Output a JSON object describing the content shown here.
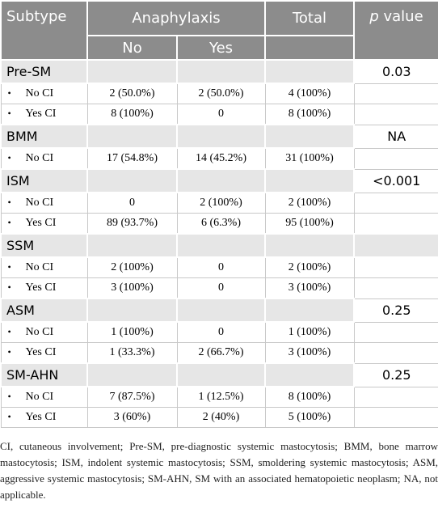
{
  "header": {
    "subtype": "Subtype",
    "anaphylaxis": "Anaphylaxis",
    "total": "Total",
    "p_symbol": "p",
    "p_label": "value",
    "no": "No",
    "yes": "Yes"
  },
  "groups": [
    {
      "subtype": "Pre-SM",
      "p_value": "0.03",
      "rows": [
        {
          "label": "No CI",
          "no": "2 (50.0%)",
          "yes": "2 (50.0%)",
          "total": "4 (100%)"
        },
        {
          "label": "Yes CI",
          "no": "8 (100%)",
          "yes": "0",
          "total": "8 (100%)"
        }
      ]
    },
    {
      "subtype": "BMM",
      "p_value": "NA",
      "rows": [
        {
          "label": "No CI",
          "no": "17 (54.8%)",
          "yes": "14 (45.2%)",
          "total": "31 (100%)"
        }
      ]
    },
    {
      "subtype": "ISM",
      "p_value": "<0.001",
      "rows": [
        {
          "label": "No CI",
          "no": "0",
          "yes": "2 (100%)",
          "total": "2 (100%)"
        },
        {
          "label": "Yes CI",
          "no": "89 (93.7%)",
          "yes": "6 (6.3%)",
          "total": "95 (100%)"
        }
      ]
    },
    {
      "subtype": "SSM",
      "rows": [
        {
          "label": "No CI",
          "no": "2 (100%)",
          "yes": "0",
          "total": "2 (100%)"
        },
        {
          "label": "Yes CI",
          "no": "3 (100%)",
          "yes": "0",
          "total": "3 (100%)"
        }
      ]
    },
    {
      "subtype": "ASM",
      "p_value": "0.25",
      "rows": [
        {
          "label": "No CI",
          "no": "1 (100%)",
          "yes": "0",
          "total": "1 (100%)"
        },
        {
          "label": "Yes CI",
          "no": "1 (33.3%)",
          "yes": "2 (66.7%)",
          "total": "3 (100%)"
        }
      ]
    },
    {
      "subtype": "SM-AHN",
      "p_value": "0.25",
      "rows": [
        {
          "label": "No CI",
          "no": "7 (87.5%)",
          "yes": "1 (12.5%)",
          "total": "8 (100%)"
        },
        {
          "label": "Yes CI",
          "no": "3 (60%)",
          "yes": "2 (40%)",
          "total": "5 (100%)"
        }
      ]
    }
  ],
  "footnote": "CI, cutaneous involvement; Pre-SM, pre-diagnostic systemic mastocytosis; BMM, bone marrow mastocytosis; ISM, indolent systemic mastocytosis; SSM, smoldering systemic mastocytosis; ASM, aggressive systemic mastocytosis; SM-AHN, SM with an associated hematopoietic neoplasm; NA, not applicable."
}
